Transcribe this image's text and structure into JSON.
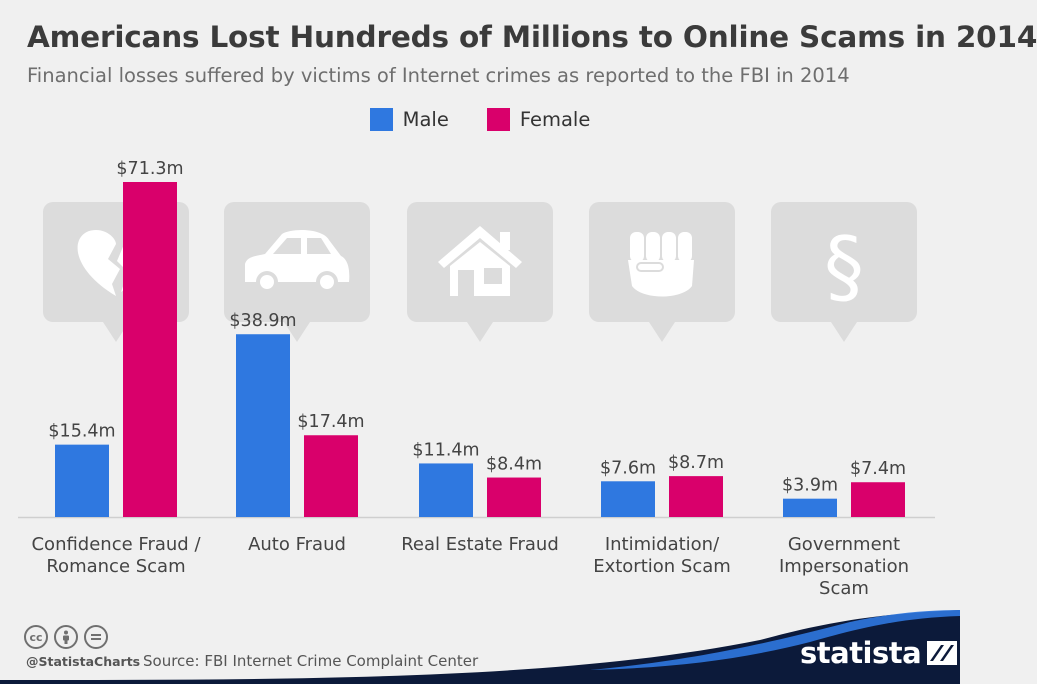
{
  "title": "Americans Lost Hundreds of Millions to Online Scams in 2014",
  "subtitle": "Financial losses suffered by victims of Internet crimes as reported to the FBI in 2014",
  "colors": {
    "male": "#2f78e0",
    "female": "#d9006b",
    "icon_bg": "#dcdcdc",
    "baseline": "#cfcfcf"
  },
  "legend": [
    {
      "label": "Male",
      "color": "#2f78e0"
    },
    {
      "label": "Female",
      "color": "#d9006b"
    }
  ],
  "chart_data": {
    "type": "bar",
    "categories": [
      [
        "Confidence Fraud /",
        "Romance Scam"
      ],
      [
        "Auto Fraud"
      ],
      [
        "Real Estate Fraud"
      ],
      [
        "Intimidation/",
        "Extortion Scam"
      ],
      [
        "Government",
        "Impersonation",
        "Scam"
      ]
    ],
    "icons": [
      "broken-heart-icon",
      "car-icon",
      "house-icon",
      "fist-icon",
      "paragraph-icon"
    ],
    "series": [
      {
        "name": "Male",
        "values": [
          15.4,
          38.9,
          11.4,
          7.6,
          3.9
        ],
        "labels": [
          "$15.4m",
          "$38.9m",
          "$11.4m",
          "$7.6m",
          "$3.9m"
        ]
      },
      {
        "name": "Female",
        "values": [
          71.3,
          17.4,
          8.4,
          8.7,
          7.4
        ],
        "labels": [
          "$71.3m",
          "$17.4m",
          "$8.4m",
          "$8.7m",
          "$7.4m"
        ]
      }
    ],
    "unit": "million US$",
    "ylim": [
      0,
      71.3
    ],
    "grid": false,
    "legend_position": "top-center"
  },
  "footer": {
    "cc_icons": [
      "cc",
      "by",
      "nd"
    ],
    "handle": "@StatistaCharts",
    "source": "Source: FBI Internet Crime Complaint Center",
    "brand": "statista"
  }
}
